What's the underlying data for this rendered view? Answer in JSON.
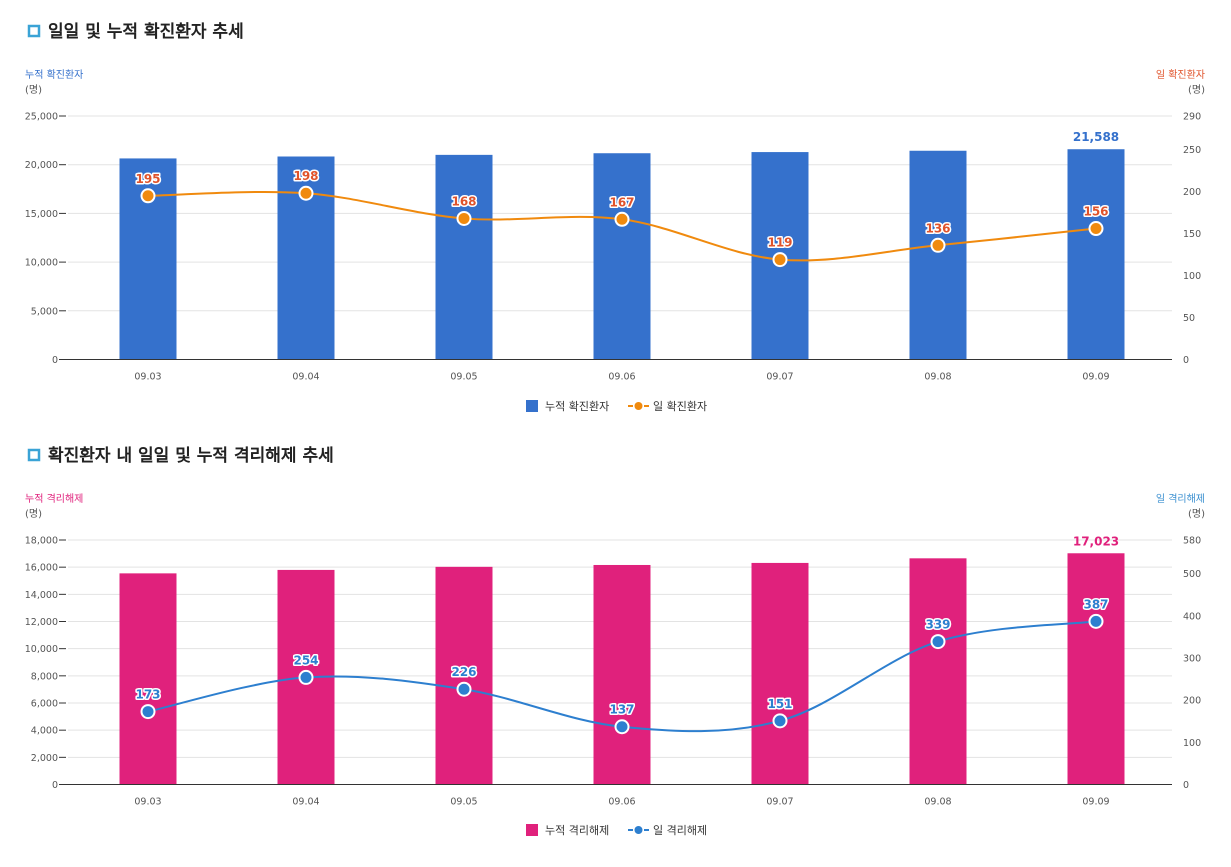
{
  "charts": [
    {
      "title": "일일 및 누적 확진환자 추세",
      "colors": {
        "bar": "#3571cc",
        "line": "#f08a0e",
        "left_axis": "#3571cc",
        "right_axis": "#e0532b",
        "point_label": "#e0532b",
        "icon": "#3aa3d6"
      }
    },
    {
      "title": "확진환자 내 일일 및 누적 격리해제 추세",
      "colors": {
        "bar": "#e0217c",
        "line": "#2d7fcf",
        "left_axis": "#e0217c",
        "right_axis": "#3a8fd0",
        "point_label": "#2d7fcf",
        "icon": "#3aa3d6"
      }
    }
  ],
  "chart_data": [
    {
      "type": "bar+line",
      "title": "일일 및 누적 확진환자 추세",
      "categories": [
        "09.03",
        "09.04",
        "09.05",
        "09.06",
        "09.07",
        "09.08",
        "09.09"
      ],
      "series": [
        {
          "name": "누적 확진환자",
          "type": "bar",
          "axis": "left",
          "values": [
            20644,
            20842,
            21010,
            21177,
            21296,
            21432,
            21588
          ]
        },
        {
          "name": "일 확진환자",
          "type": "line",
          "axis": "right",
          "values": [
            195,
            198,
            168,
            167,
            119,
            136,
            156
          ]
        }
      ],
      "bar_value_label": "21,588",
      "left_axis": {
        "label": "누적 확진환자",
        "unit": "(명)",
        "range": [
          0,
          25000
        ],
        "ticks": [
          "0",
          "5,000",
          "10,000",
          "15,000",
          "20,000",
          "25,000"
        ]
      },
      "right_axis": {
        "label": "일 확진환자",
        "unit": "(명)",
        "range": [
          0,
          290
        ],
        "ticks": [
          "0",
          "50",
          "100",
          "150",
          "200",
          "250",
          "290"
        ]
      },
      "legend": [
        "누적 확진환자",
        "일 확진환자"
      ],
      "grid": true
    },
    {
      "type": "bar+line",
      "title": "확진환자 내 일일 및 누적 격리해제 추세",
      "categories": [
        "09.03",
        "09.04",
        "09.05",
        "09.06",
        "09.07",
        "09.08",
        "09.09"
      ],
      "series": [
        {
          "name": "누적 격리해제",
          "type": "bar",
          "axis": "left",
          "values": [
            15544,
            15798,
            16024,
            16161,
            16312,
            16651,
            17023
          ]
        },
        {
          "name": "일 격리해제",
          "type": "line",
          "axis": "right",
          "values": [
            173,
            254,
            226,
            137,
            151,
            339,
            387
          ]
        }
      ],
      "bar_value_label": "17,023",
      "left_axis": {
        "label": "누적 격리해제",
        "unit": "(명)",
        "range": [
          0,
          18000
        ],
        "ticks": [
          "0",
          "2,000",
          "4,000",
          "6,000",
          "8,000",
          "10,000",
          "12,000",
          "14,000",
          "16,000",
          "18,000"
        ]
      },
      "right_axis": {
        "label": "일 격리해제",
        "unit": "(명)",
        "range": [
          0,
          580
        ],
        "ticks": [
          "0",
          "100",
          "200",
          "300",
          "400",
          "500",
          "580"
        ]
      },
      "legend": [
        "누적 격리해제",
        "일 격리해제"
      ],
      "grid": true
    }
  ]
}
